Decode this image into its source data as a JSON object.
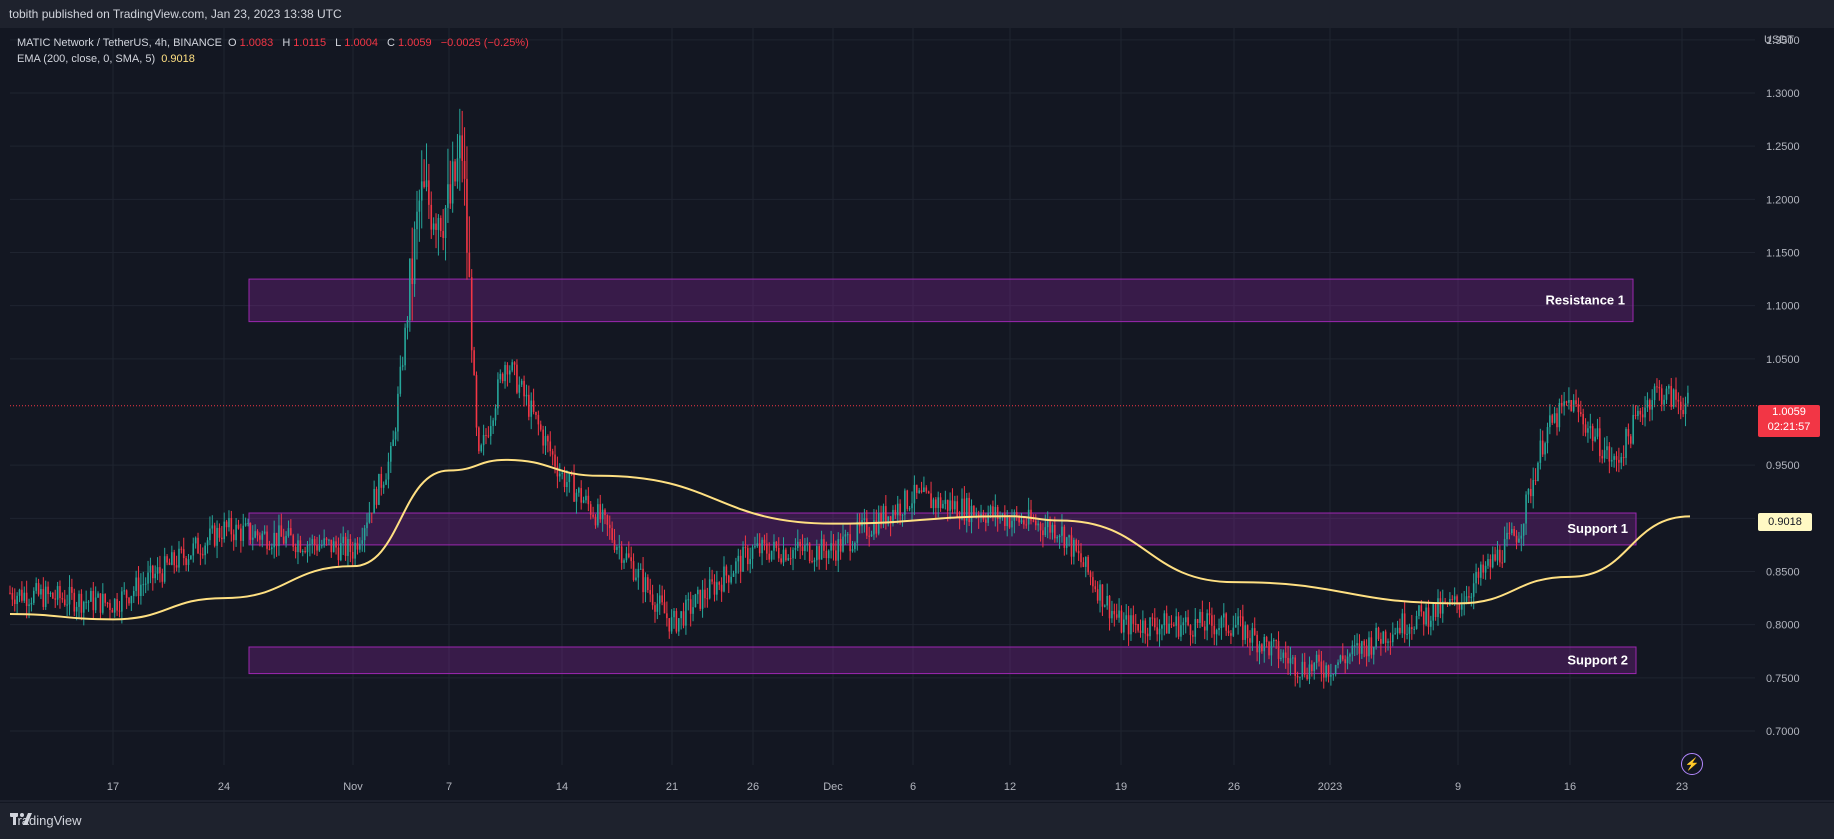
{
  "header": {
    "published": "tobith published on TradingView.com, Jan 23, 2023 13:38 UTC"
  },
  "legend": {
    "symbol": "MATIC Network / TetherUS, 4h, BINANCE",
    "o_label": "O",
    "o": "1.0083",
    "h_label": "H",
    "h": "1.0115",
    "l_label": "L",
    "l": "1.0004",
    "c_label": "C",
    "c": "1.0059",
    "change": "−0.0025 (−0.25%)",
    "ema_label": "EMA (200, close, 0, SMA, 5)",
    "ema_value": "0.9018"
  },
  "axis": {
    "currency": "USDT",
    "last_price": "1.0059",
    "countdown": "02:21:57",
    "ema_tag": "0.9018"
  },
  "footer": {
    "brand": "TradingView"
  },
  "colors": {
    "up": "#26a69a",
    "down": "#f23645",
    "ema": "#ffe082",
    "zone_fill": "#9c27b0",
    "zone_stroke": "#9c27b0"
  },
  "chart_data": {
    "type": "candlestick",
    "title": "MATIC Network / TetherUS, 4h, BINANCE",
    "ylim": [
      0.68,
      1.37
    ],
    "y_ticks": [
      "1.3500",
      "1.3000",
      "1.2500",
      "1.2000",
      "1.1500",
      "1.1000",
      "1.0500",
      "0.9500",
      "0.9000",
      "0.8500",
      "0.8000",
      "0.7500",
      "0.7000"
    ],
    "x_ticks": [
      "17",
      "24",
      "Nov",
      "7",
      "14",
      "21",
      "26",
      "Dec",
      "6",
      "12",
      "19",
      "26",
      "2023",
      "9",
      "16",
      "23"
    ],
    "grid": true,
    "last_close": 1.0059,
    "zones": [
      {
        "label": "Resistance 1",
        "low": 1.085,
        "high": 1.125
      },
      {
        "label": "Support 1",
        "low": 0.875,
        "high": 0.905
      },
      {
        "label": "Support 2",
        "low": 0.754,
        "high": 0.779
      }
    ],
    "closes_by_tick": [
      {
        "x": "start",
        "close": 0.83
      },
      {
        "x": "17",
        "close": 0.82
      },
      {
        "x": "24",
        "close": 0.89
      },
      {
        "x": "Nov",
        "close": 0.87
      },
      {
        "x": "3",
        "close": 0.96
      },
      {
        "x": "5",
        "close": 1.2
      },
      {
        "x": "7",
        "close": 1.19
      },
      {
        "x": "8",
        "close": 1.25
      },
      {
        "x": "9",
        "close": 0.95
      },
      {
        "x": "10",
        "close": 1.05
      },
      {
        "x": "14",
        "close": 0.94
      },
      {
        "x": "17",
        "close": 0.9
      },
      {
        "x": "21",
        "close": 0.8
      },
      {
        "x": "26",
        "close": 0.87
      },
      {
        "x": "Dec",
        "close": 0.87
      },
      {
        "x": "6",
        "close": 0.92
      },
      {
        "x": "12",
        "close": 0.9
      },
      {
        "x": "15",
        "close": 0.89
      },
      {
        "x": "19",
        "close": 0.8
      },
      {
        "x": "26",
        "close": 0.8
      },
      {
        "x": "30",
        "close": 0.76
      },
      {
        "x": "2023",
        "close": 0.76
      },
      {
        "x": "6",
        "close": 0.8
      },
      {
        "x": "9",
        "close": 0.82
      },
      {
        "x": "12",
        "close": 0.89
      },
      {
        "x": "14",
        "close": 0.98
      },
      {
        "x": "16",
        "close": 1.01
      },
      {
        "x": "18",
        "close": 0.95
      },
      {
        "x": "20",
        "close": 1.0
      },
      {
        "x": "21",
        "close": 1.02
      },
      {
        "x": "23",
        "close": 1.0059
      }
    ],
    "ema_by_tick": [
      {
        "x": "start",
        "value": 0.81
      },
      {
        "x": "17",
        "value": 0.805
      },
      {
        "x": "24",
        "value": 0.825
      },
      {
        "x": "Nov",
        "value": 0.855
      },
      {
        "x": "7",
        "value": 0.945
      },
      {
        "x": "10",
        "value": 0.955
      },
      {
        "x": "17",
        "value": 0.94
      },
      {
        "x": "Dec",
        "value": 0.895
      },
      {
        "x": "12",
        "value": 0.902
      },
      {
        "x": "15",
        "value": 0.898
      },
      {
        "x": "26",
        "value": 0.84
      },
      {
        "x": "9",
        "value": 0.82
      },
      {
        "x": "16",
        "value": 0.845
      },
      {
        "x": "23",
        "value": 0.9018
      }
    ]
  }
}
